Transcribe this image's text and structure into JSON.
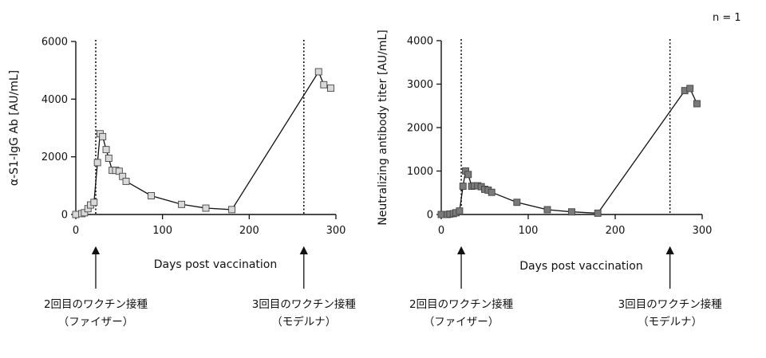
{
  "note": "n = 1",
  "chart_data": [
    {
      "type": "line",
      "title": "",
      "xlabel": "Days post vaccination",
      "ylabel": "α-S1-IgG Ab [AU/mL]",
      "xlim": [
        0,
        300
      ],
      "ylim": [
        0,
        6000
      ],
      "xticks": [
        0,
        100,
        200,
        300
      ],
      "yticks": [
        0,
        2000,
        4000,
        6000
      ],
      "marker": "square",
      "marker_color": "#d9d9d9",
      "grid": false,
      "series": [
        {
          "x": [
            0,
            7,
            10,
            14,
            17,
            21,
            25,
            28,
            31,
            35,
            38,
            42,
            46,
            50,
            54,
            58,
            87,
            122,
            150,
            180,
            280,
            286,
            294
          ],
          "y": [
            0,
            30,
            60,
            200,
            330,
            420,
            1800,
            2800,
            2700,
            2250,
            1950,
            1530,
            1530,
            1500,
            1320,
            1150,
            650,
            350,
            220,
            170,
            4950,
            4500,
            4380
          ]
        }
      ],
      "events": [
        {
          "x": 23,
          "label_line1": "2回目のワクチン接種",
          "label_line2": "（ファイザー）"
        },
        {
          "x": 263,
          "label_line1": "3回目のワクチン接種",
          "label_line2": "（モデルナ）"
        }
      ]
    },
    {
      "type": "line",
      "title": "",
      "xlabel": "Days post vaccination",
      "ylabel": "Neutralizing antibody titer [AU/mL]",
      "xlim": [
        0,
        300
      ],
      "ylim": [
        0,
        4000
      ],
      "xticks": [
        0,
        100,
        200,
        300
      ],
      "yticks": [
        0,
        1000,
        2000,
        3000,
        4000
      ],
      "marker": "square",
      "marker_color": "#7a7a7a",
      "grid": false,
      "series": [
        {
          "x": [
            0,
            7,
            10,
            14,
            17,
            21,
            25,
            28,
            31,
            35,
            38,
            42,
            46,
            50,
            54,
            58,
            87,
            122,
            150,
            180,
            280,
            286,
            294
          ],
          "y": [
            0,
            0,
            10,
            20,
            40,
            80,
            650,
            1000,
            920,
            650,
            660,
            660,
            640,
            580,
            560,
            510,
            280,
            110,
            60,
            30,
            2850,
            2900,
            2550
          ]
        }
      ],
      "events": [
        {
          "x": 23,
          "label_line1": "2回目のワクチン接種",
          "label_line2": "（ファイザー）"
        },
        {
          "x": 263,
          "label_line1": "3回目のワクチン接種",
          "label_line2": "（モデルナ）"
        }
      ]
    }
  ]
}
